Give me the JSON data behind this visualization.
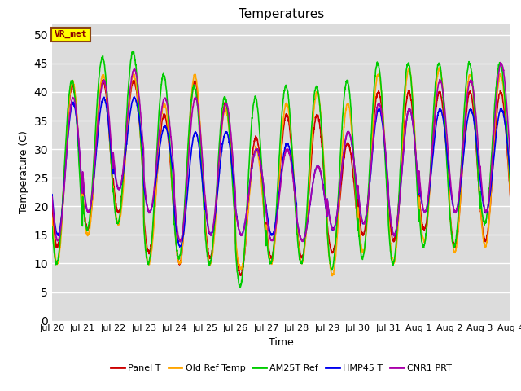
{
  "title": "Temperatures",
  "xlabel": "Time",
  "ylabel": "Temperature (C)",
  "ylim": [
    0,
    52
  ],
  "yticks": [
    0,
    5,
    10,
    15,
    20,
    25,
    30,
    35,
    40,
    45,
    50
  ],
  "bg_color": "#dcdcdc",
  "fig_bg_color": "#ffffff",
  "annotation_text": "VR_met",
  "annotation_bg": "#ffff00",
  "annotation_border": "#8B4513",
  "lines": [
    {
      "label": "Panel T",
      "color": "#cc0000",
      "lw": 1.2
    },
    {
      "label": "Old Ref Temp",
      "color": "#ffa500",
      "lw": 1.2
    },
    {
      "label": "AM25T Ref",
      "color": "#00cc00",
      "lw": 1.2
    },
    {
      "label": "HMP45 T",
      "color": "#0000ee",
      "lw": 1.2
    },
    {
      "label": "CNR1 PRT",
      "color": "#aa00aa",
      "lw": 1.2
    }
  ],
  "tick_labels": [
    "Jul 20",
    "Jul 21",
    "Jul 22",
    "Jul 23",
    "Jul 24",
    "Jul 25",
    "Jul 26",
    "Jul 27",
    "Jul 28",
    "Jul 29",
    "Jul 30",
    "Jul 31",
    "Aug 1",
    "Aug 2",
    "Aug 3",
    "Aug 4"
  ],
  "num_days": 15,
  "cycles_data": {
    "panel_t": {
      "mins": [
        13,
        16,
        19,
        12,
        10,
        11,
        8,
        11,
        11,
        12,
        15,
        14,
        16,
        13,
        14
      ],
      "maxs": [
        41,
        42,
        42,
        36,
        42,
        38,
        32,
        36,
        36,
        31,
        40,
        40,
        40,
        40,
        40
      ]
    },
    "old_ref": {
      "mins": [
        10,
        15,
        17,
        10,
        10,
        10,
        9,
        10,
        10,
        8,
        12,
        10,
        14,
        12,
        13
      ],
      "maxs": [
        42,
        43,
        43,
        38,
        43,
        37,
        30,
        38,
        40,
        38,
        43,
        44,
        44,
        43,
        43
      ]
    },
    "am25t": {
      "mins": [
        10,
        16,
        17,
        10,
        11,
        10,
        6,
        10,
        10,
        9,
        11,
        10,
        13,
        13,
        17
      ],
      "maxs": [
        42,
        46,
        47,
        43,
        41,
        39,
        39,
        41,
        41,
        42,
        45,
        45,
        45,
        45,
        45
      ]
    },
    "hmp45": {
      "mins": [
        15,
        19,
        23,
        19,
        13,
        15,
        15,
        15,
        14,
        16,
        17,
        15,
        19,
        19,
        19
      ],
      "maxs": [
        38,
        39,
        39,
        34,
        33,
        33,
        30,
        31,
        27,
        33,
        37,
        37,
        37,
        37,
        37
      ]
    },
    "cnr1_prt": {
      "mins": [
        14,
        19,
        23,
        19,
        14,
        15,
        15,
        14,
        14,
        16,
        17,
        15,
        19,
        19,
        19
      ],
      "maxs": [
        39,
        42,
        44,
        39,
        39,
        38,
        30,
        30,
        27,
        33,
        38,
        37,
        42,
        42,
        45
      ]
    }
  }
}
